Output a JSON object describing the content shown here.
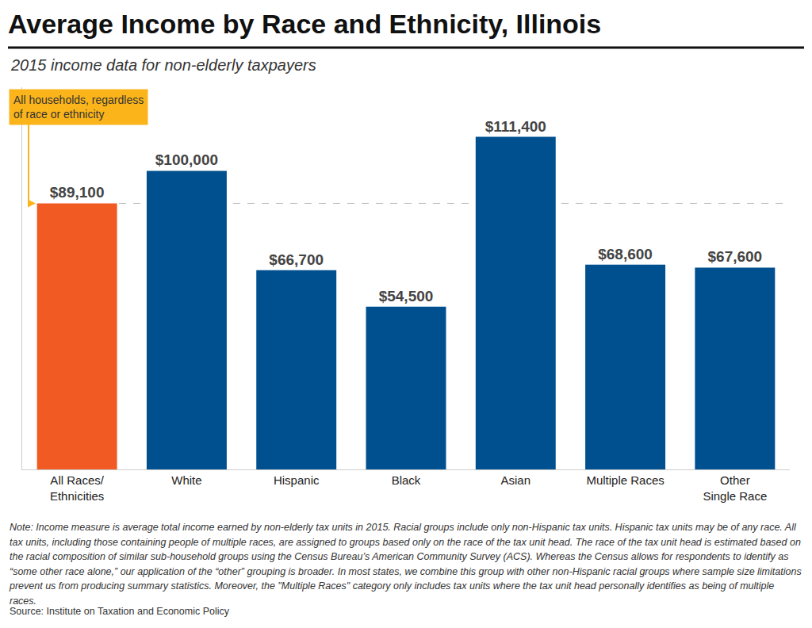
{
  "chart_data": {
    "type": "bar",
    "title": "Average Income by Race and Ethnicity, Illinois",
    "subtitle": "2015 income data for non-elderly taxpayers",
    "categories": [
      "All Races/\nEthnicities",
      "White",
      "Hispanic",
      "Black",
      "Asian",
      "Multiple Races",
      "Other\nSingle Race"
    ],
    "values": [
      89100,
      100000,
      66700,
      54500,
      111400,
      68600,
      67600
    ],
    "value_labels": [
      "$89,100",
      "$100,000",
      "$66,700",
      "$54,500",
      "$111,400",
      "$68,600",
      "$67,600"
    ],
    "colors": [
      "#f15a22",
      "#00508f",
      "#00508f",
      "#00508f",
      "#00508f",
      "#00508f",
      "#00508f"
    ],
    "ylim": [
      0,
      128000
    ],
    "grid": false,
    "data_labels": true,
    "tick_labels": "x",
    "annotations": [
      {
        "text": "All households, regardless\nof race or ethnicity"
      }
    ],
    "note": "Note: Income measure is average total income earned by non-elderly tax units in 2015. Racial groups include only non-Hispanic tax units. Hispanic tax units may be of any race. All tax units, including those containing people of multiple races, are assigned to groups based only on the race of the tax unit head. The race of the tax unit head is estimated based on the racial composition of similar sub-household groups using the Census Bureau’s American Community Survey (ACS). Whereas the Census allows for respondents to identify as “some other race alone,” our application of the “other” grouping is broader. In most states, we combine this group with other non-Hispanic racial groups where sample size limitations prevent us from producing summary statistics. Moreover, the \"Multiple Races\" category only includes tax units where the tax unit head personally identifies as being of multiple races.",
    "source": "Source: Institute on Taxation and Economic Policy"
  }
}
